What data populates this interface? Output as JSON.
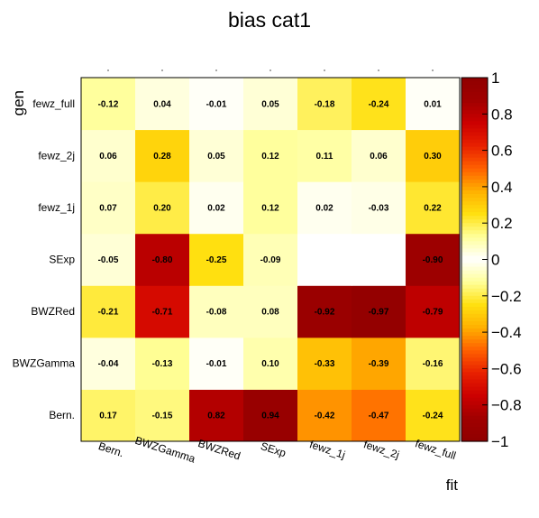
{
  "chart_data": {
    "type": "heatmap",
    "title": "bias cat1",
    "xlabel": "fit",
    "ylabel": "gen",
    "x_categories": [
      "Bern.",
      "BWZGamma",
      "BWZRed",
      "SExp",
      "fewz_1j",
      "fewz_2j",
      "fewz_full"
    ],
    "y_categories": [
      "Bern.",
      "BWZGamma",
      "BWZRed",
      "SExp",
      "fewz_1j",
      "fewz_2j",
      "fewz_full"
    ],
    "values": [
      [
        0.17,
        -0.15,
        0.82,
        0.94,
        -0.42,
        -0.47,
        -0.24
      ],
      [
        -0.04,
        -0.13,
        -0.01,
        0.1,
        -0.33,
        -0.39,
        -0.16
      ],
      [
        -0.21,
        -0.71,
        -0.08,
        0.08,
        -0.92,
        -0.97,
        -0.79
      ],
      [
        -0.05,
        -0.8,
        -0.25,
        -0.09,
        null,
        null,
        -0.9
      ],
      [
        0.07,
        0.2,
        0.02,
        0.12,
        0.02,
        -0.03,
        0.22
      ],
      [
        0.06,
        0.28,
        0.05,
        0.12,
        0.11,
        0.06,
        0.3
      ],
      [
        -0.12,
        0.04,
        -0.01,
        0.05,
        -0.18,
        -0.24,
        0.01
      ]
    ],
    "value_labels": [
      [
        "0.17",
        "-0.15",
        "0.82",
        "0.94",
        "-0.42",
        "-0.47",
        "-0.24"
      ],
      [
        "-0.04",
        "-0.13",
        "-0.01",
        "0.10",
        "-0.33",
        "-0.39",
        "-0.16"
      ],
      [
        "-0.21",
        "-0.71",
        "-0.08",
        "0.08",
        "-0.92",
        "-0.97",
        "-0.79"
      ],
      [
        "-0.05",
        "-0.80",
        "-0.25",
        "-0.09",
        "",
        "",
        "-0.90"
      ],
      [
        "0.07",
        "0.20",
        "0.02",
        "0.12",
        "0.02",
        "-0.03",
        "0.22"
      ],
      [
        "0.06",
        "0.28",
        "0.05",
        "0.12",
        "0.11",
        "0.06",
        "0.30"
      ],
      [
        "-0.12",
        "0.04",
        "-0.01",
        "0.05",
        "-0.18",
        "-0.24",
        "0.01"
      ]
    ],
    "zlim": [
      -1,
      1
    ],
    "colorbar_ticks": [
      1,
      0.8,
      0.6,
      0.4,
      0.2,
      0,
      -0.2,
      -0.4,
      -0.6,
      -0.8,
      -1
    ],
    "colorbar_tick_labels": [
      "1",
      "0.8",
      "0.6",
      "0.4",
      "0.2",
      "0",
      "−0.2",
      "−0.4",
      "−0.6",
      "−0.8",
      "−1"
    ],
    "colormap": "absolute-value heat (white at 0, yellow, orange, red, dark red at |1|)",
    "colors": {
      "c0": "#ffffff",
      "c1": "#ffff99",
      "c2": "#ffe010",
      "c3": "#ffb000",
      "c4": "#ff6000",
      "c5": "#e82000",
      "c6": "#cc0000",
      "c7": "#a00000",
      "c8": "#900000"
    },
    "grid": false
  }
}
